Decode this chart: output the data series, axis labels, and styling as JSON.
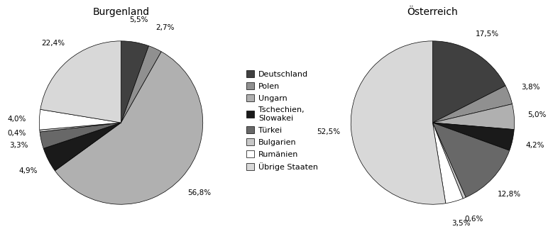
{
  "title1": "Burgenland",
  "title2": "Österreich",
  "legend_labels": [
    "Deutschland",
    "Polen",
    "Ungarn",
    "Tschechien,\nSlowakei",
    "Türkei",
    "Bulgarien",
    "Rumänien",
    "Übrige Staaten"
  ],
  "colors": [
    "#404040",
    "#909090",
    "#b0b0b0",
    "#1a1a1a",
    "#686868",
    "#c8c8c8",
    "#ffffff",
    "#d8d8d8"
  ],
  "burgenland_values": [
    5.5,
    2.7,
    56.8,
    4.9,
    3.3,
    0.4,
    4.0,
    22.4
  ],
  "burgenland_labels": [
    "5,5%",
    "2,7%",
    "56,8%",
    "4,9%",
    "3,3%",
    "0,4%",
    "4,0%",
    "22,4%"
  ],
  "oesterreich_values": [
    17.5,
    3.8,
    5.0,
    4.2,
    12.8,
    0.6,
    3.5,
    52.5
  ],
  "oesterreich_labels": [
    "17,5%",
    "3,8%",
    "5,0%",
    "4,2%",
    "12,8%",
    "0,6%",
    "3,5%",
    "52,5%"
  ],
  "label_fontsize": 7.5,
  "title_fontsize": 10,
  "legend_fontsize": 8.0
}
